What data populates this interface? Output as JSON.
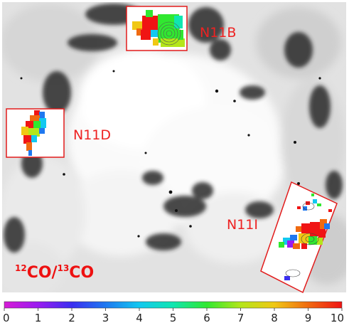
{
  "regions": [
    {
      "id": "n11b",
      "label": "N11B"
    },
    {
      "id": "n11d",
      "label": "N11D"
    },
    {
      "id": "n11i",
      "label": "N11I"
    }
  ],
  "ratio_label": {
    "iso1_mass": "12",
    "iso1_text": "CO/",
    "iso2_mass": "13",
    "iso2_text": "CO"
  },
  "colorbar": {
    "min": 0,
    "max": 10,
    "ticks": [
      "0",
      "1",
      "2",
      "3",
      "4",
      "5",
      "6",
      "7",
      "8",
      "9",
      "10"
    ],
    "colors": [
      "#d61cd6",
      "#9a1cf0",
      "#3a2ef0",
      "#1e78f0",
      "#12c8f0",
      "#10e6b0",
      "#30e830",
      "#b4e61a",
      "#f0c814",
      "#f06a10",
      "#f01414"
    ]
  },
  "colors": {
    "label_red": "#ee2222",
    "inset_border": "#e21b1b"
  }
}
